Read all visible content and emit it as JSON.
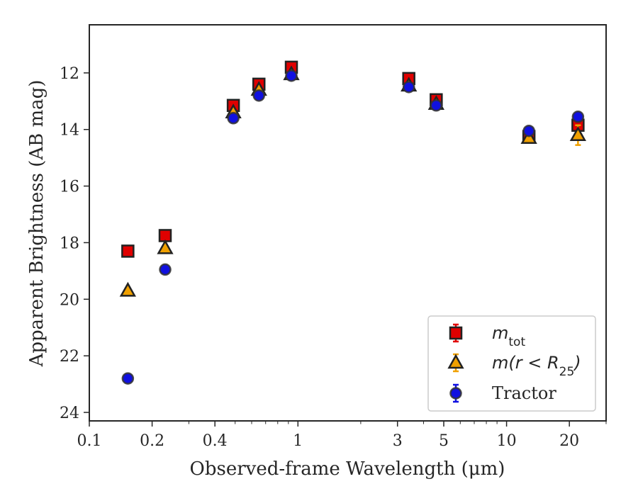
{
  "chart_data": {
    "type": "scatter",
    "xlabel": "Observed-frame Wavelength (μm)",
    "ylabel": "Apparent Brightness (AB mag)",
    "xscale": "log",
    "xlim": [
      0.1,
      30
    ],
    "ylim": [
      24.3,
      10.3
    ],
    "y_inverted": true,
    "x_ticks": [
      0.1,
      0.2,
      0.4,
      1,
      3,
      5,
      10,
      20
    ],
    "x_tick_labels": [
      "0.1",
      "0.2",
      "0.4",
      "1",
      "3",
      "5",
      "10",
      "20"
    ],
    "y_ticks": [
      12,
      14,
      16,
      18,
      20,
      22,
      24
    ],
    "y_tick_labels": [
      "12",
      "14",
      "16",
      "18",
      "20",
      "22",
      "24"
    ],
    "grid": false,
    "legend_position": "lower-right",
    "series": [
      {
        "name": "m_tot",
        "legend_main": "m",
        "legend_sub": "tot",
        "marker": "square",
        "fill": "#e00000",
        "errorbar_color": "#e00000",
        "x": [
          0.153,
          0.231,
          0.49,
          0.65,
          0.93,
          3.4,
          4.6,
          12.8,
          22.0
        ],
        "y": [
          18.3,
          17.75,
          13.15,
          12.4,
          11.8,
          12.2,
          12.95,
          14.25,
          13.85
        ],
        "yerr": [
          0.05,
          0.05,
          0.05,
          0.05,
          0.05,
          0.05,
          0.05,
          0.05,
          0.1
        ]
      },
      {
        "name": "m(r < R25)",
        "legend_main": "m(r < R",
        "legend_sub": "25",
        "legend_end": ")",
        "marker": "triangle",
        "fill": "#f0a000",
        "errorbar_color": "#f0a000",
        "x": [
          0.153,
          0.231,
          0.49,
          0.65,
          0.93,
          3.4,
          4.6,
          12.8,
          22.0
        ],
        "y": [
          19.7,
          18.2,
          13.4,
          12.6,
          12.05,
          12.45,
          13.1,
          14.3,
          14.2
        ],
        "yerr": [
          0.05,
          0.05,
          0.05,
          0.05,
          0.05,
          0.05,
          0.05,
          0.1,
          0.35
        ]
      },
      {
        "name": "Tractor",
        "legend_main": "Tractor",
        "marker": "circle",
        "fill": "#1010e0",
        "errorbar_color": "#1010e0",
        "x": [
          0.153,
          0.231,
          0.49,
          0.65,
          0.93,
          3.4,
          4.6,
          12.8,
          22.0
        ],
        "y": [
          22.8,
          18.95,
          13.6,
          12.8,
          12.1,
          12.5,
          13.15,
          14.05,
          13.55
        ],
        "yerr": [
          0.03,
          0.03,
          0.03,
          0.03,
          0.03,
          0.03,
          0.03,
          0.05,
          0.05
        ]
      }
    ]
  }
}
